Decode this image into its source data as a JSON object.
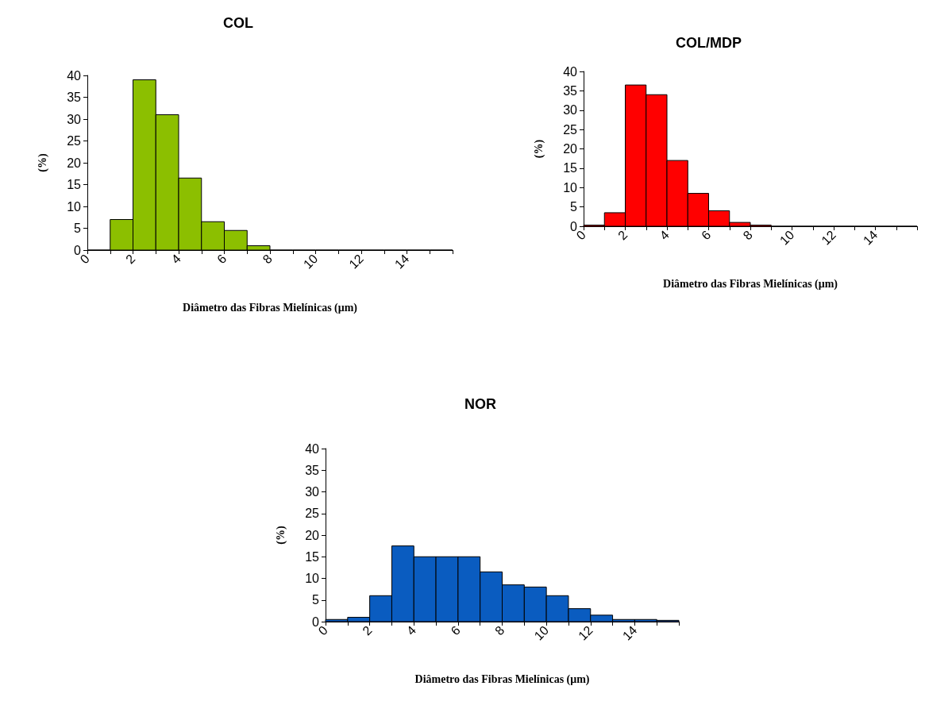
{
  "chart_data": [
    {
      "type": "histogram",
      "title": "COL",
      "xlabel": "Diâmetro das Fibras Mielínicas (μm)",
      "ylabel": "(%)",
      "bins": [
        0,
        1,
        2,
        3,
        4,
        5,
        6,
        7,
        8,
        9,
        10,
        11,
        12,
        13,
        14,
        15,
        16
      ],
      "series": [
        {
          "color": "#8cbf00",
          "values": [
            0,
            7,
            39,
            31,
            16.5,
            6.5,
            4.5,
            1,
            0,
            0,
            0,
            0,
            0,
            0,
            0,
            0
          ]
        }
      ],
      "xlim": [
        0,
        16
      ],
      "xticks": [
        0,
        {
          "value": 1,
          "label": null
        },
        2,
        {
          "value": 3,
          "label": null
        },
        4,
        {
          "value": 5,
          "label": null
        },
        6,
        {
          "value": 7,
          "label": null
        },
        8,
        {
          "value": 9,
          "label": null
        },
        10,
        {
          "value": 11,
          "label": null
        },
        12,
        {
          "value": 13,
          "label": null
        },
        14,
        {
          "value": 15,
          "label": null
        },
        {
          "value": 16,
          "label": null
        }
      ],
      "ylim": [
        0,
        40
      ],
      "yticks": [
        0,
        5,
        10,
        15,
        20,
        25,
        30,
        35,
        40
      ],
      "grid": false
    },
    {
      "type": "histogram",
      "title": "COL/MDP",
      "xlabel": "Diâmetro das Fibras Mielínicas (μm)",
      "ylabel": "(%)",
      "bins": [
        0,
        1,
        2,
        3,
        4,
        5,
        6,
        7,
        8,
        9,
        10,
        11,
        12,
        13,
        14,
        15,
        16
      ],
      "series": [
        {
          "color": "#ff0000",
          "values": [
            0.3,
            3.5,
            36.5,
            34,
            17,
            8.5,
            4,
            1,
            0.3,
            0,
            0,
            0,
            0,
            0,
            0,
            0
          ]
        }
      ],
      "xlim": [
        0,
        16
      ],
      "xticks": [
        0,
        {
          "value": 1,
          "label": null
        },
        2,
        {
          "value": 3,
          "label": null
        },
        4,
        {
          "value": 5,
          "label": null
        },
        6,
        {
          "value": 7,
          "label": null
        },
        8,
        {
          "value": 9,
          "label": null
        },
        10,
        {
          "value": 11,
          "label": null
        },
        12,
        {
          "value": 13,
          "label": null
        },
        14,
        {
          "value": 15,
          "label": null
        },
        {
          "value": 16,
          "label": null
        }
      ],
      "ylim": [
        0,
        40
      ],
      "yticks": [
        0,
        5,
        10,
        15,
        20,
        25,
        30,
        35,
        40
      ],
      "grid": false
    },
    {
      "type": "histogram",
      "title": "NOR",
      "xlabel": "Diâmetro das Fibras Mielínicas (μm)",
      "ylabel": "(%)",
      "bins": [
        0,
        1,
        2,
        3,
        4,
        5,
        6,
        7,
        8,
        9,
        10,
        11,
        12,
        13,
        14,
        15,
        16
      ],
      "series": [
        {
          "color": "#0a5cc0",
          "values": [
            0.5,
            1,
            6,
            17.5,
            15,
            15,
            15,
            11.5,
            8.5,
            8,
            6,
            3,
            1.5,
            0.5,
            0.5,
            0.3
          ]
        }
      ],
      "xlim": [
        0,
        16
      ],
      "xticks": [
        0,
        {
          "value": 1,
          "label": null
        },
        2,
        {
          "value": 3,
          "label": null
        },
        4,
        {
          "value": 5,
          "label": null
        },
        6,
        {
          "value": 7,
          "label": null
        },
        8,
        {
          "value": 9,
          "label": null
        },
        10,
        {
          "value": 11,
          "label": null
        },
        12,
        {
          "value": 13,
          "label": null
        },
        14,
        {
          "value": 15,
          "label": null
        },
        {
          "value": 16,
          "label": null
        }
      ],
      "ylim": [
        0,
        40
      ],
      "yticks": [
        0,
        5,
        10,
        15,
        20,
        25,
        30,
        35,
        40
      ],
      "grid": false
    }
  ]
}
